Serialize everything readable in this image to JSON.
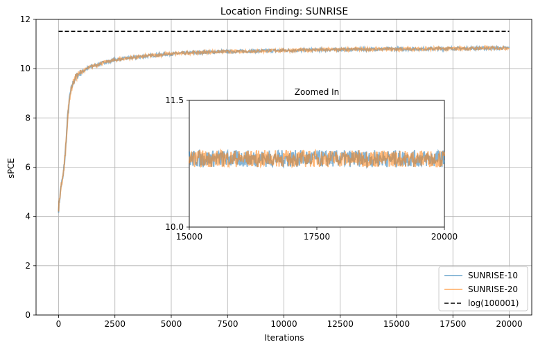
{
  "chart_data": {
    "type": "line",
    "title": "Location Finding: SUNRISE",
    "xlabel": "Iterations",
    "ylabel": "sPCE",
    "xlim": [
      -1000,
      21000
    ],
    "ylim": [
      0,
      12
    ],
    "xticks": [
      0,
      2500,
      5000,
      7500,
      10000,
      12500,
      15000,
      17500,
      20000
    ],
    "yticks": [
      0,
      2,
      4,
      6,
      8,
      10,
      12
    ],
    "grid": true,
    "legend_position": "lower-right",
    "series": [
      {
        "name": "SUNRISE-10",
        "color": "#1f77b4",
        "x": [
          0,
          100,
          200,
          300,
          400,
          500,
          600,
          700,
          800,
          1000,
          1250,
          1500,
          2000,
          2500,
          3000,
          4000,
          5000,
          6000,
          7000,
          8000,
          10000,
          12000,
          14000,
          16000,
          18000,
          20000
        ],
        "values": [
          4.3,
          5.2,
          5.6,
          6.6,
          8.0,
          8.9,
          9.3,
          9.55,
          9.7,
          9.85,
          10.0,
          10.1,
          10.25,
          10.35,
          10.42,
          10.52,
          10.6,
          10.65,
          10.68,
          10.7,
          10.74,
          10.77,
          10.79,
          10.8,
          10.82,
          10.84
        ]
      },
      {
        "name": "SUNRISE-20",
        "color": "#ff7f0e",
        "x": [
          0,
          100,
          200,
          300,
          400,
          500,
          600,
          700,
          800,
          1000,
          1250,
          1500,
          2000,
          2500,
          3000,
          4000,
          5000,
          6000,
          7000,
          8000,
          10000,
          12000,
          14000,
          16000,
          18000,
          20000
        ],
        "values": [
          4.3,
          5.2,
          5.6,
          6.6,
          8.0,
          8.9,
          9.3,
          9.55,
          9.7,
          9.85,
          10.0,
          10.1,
          10.25,
          10.35,
          10.42,
          10.52,
          10.6,
          10.65,
          10.68,
          10.7,
          10.74,
          10.77,
          10.79,
          10.8,
          10.82,
          10.84
        ]
      },
      {
        "name": "log(100001)",
        "color": "#000000",
        "dashed": true,
        "x": [
          0,
          20000
        ],
        "values": [
          11.513,
          11.513
        ]
      }
    ],
    "inset": {
      "title": "Zoomed In",
      "xlim": [
        15000,
        20000
      ],
      "ylim": [
        10.0,
        11.5
      ],
      "xticks": [
        15000,
        17500,
        20000
      ],
      "yticks": [
        10.0,
        11.5
      ],
      "ytick_labels": [
        "10.0",
        "11.5"
      ],
      "level": 10.81,
      "band": 0.1
    }
  }
}
